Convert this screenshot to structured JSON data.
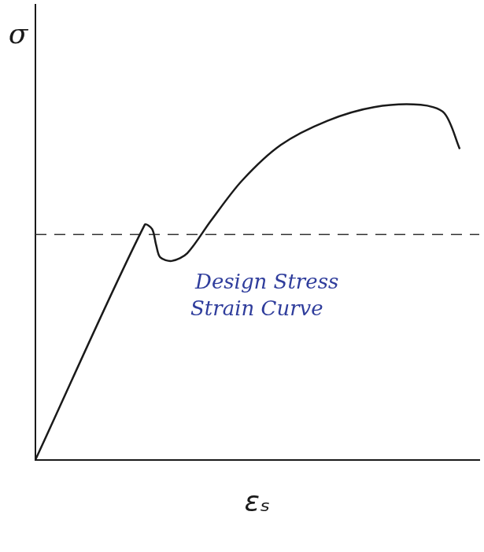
{
  "chart_data": {
    "type": "line",
    "y_label": "σ",
    "x_label": "εₛ",
    "annotations": [
      {
        "text": "Design Stress Strain Curve",
        "color": "#2f3d9c"
      }
    ],
    "xlim": [
      0,
      100
    ],
    "ylim": [
      0,
      100
    ],
    "xticks": [],
    "yticks": [],
    "tick_labels": false,
    "grid": false,
    "series": [
      {
        "color": "#1a1a1a",
        "line_style": "solid",
        "x": [
          0,
          24.6,
          26.3,
          27.2,
          28.1,
          30.7,
          34.2,
          39.5,
          46.5,
          55.3,
          65.8,
          76.3,
          86.8,
          92.1,
          95.6
        ],
        "values": [
          0,
          51.6,
          50.7,
          47.2,
          44.5,
          43.7,
          45.4,
          52.5,
          61.3,
          69.2,
          74.5,
          77.5,
          78,
          76.2,
          68.3
        ]
      },
      {
        "color": "#333333",
        "line_style": "dashed",
        "x": [
          0,
          100
        ],
        "values": [
          49.5,
          49.5
        ]
      }
    ]
  }
}
